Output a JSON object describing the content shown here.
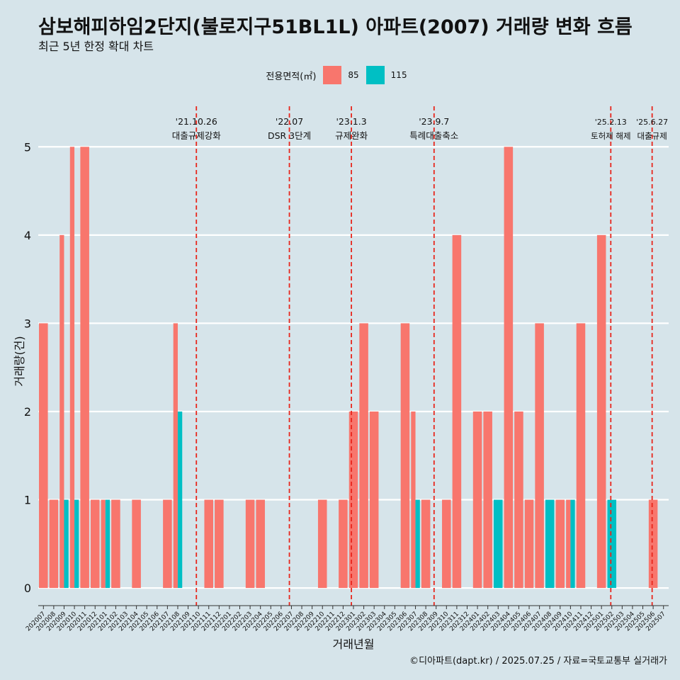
{
  "chart_data": {
    "type": "bar",
    "title": "삼보해피하임2단지(불로지구51BL1L) 아파트(2007) 거래량 변화 흐름",
    "subtitle": "최근 5년 한정 확대 차트",
    "xlabel": "거래년월",
    "ylabel": "거래량(건)",
    "ylim": [
      -0.2,
      5.5
    ],
    "yticks": [
      0,
      1,
      2,
      3,
      4,
      5
    ],
    "legend": {
      "title": "전용면적(㎡)",
      "position": "top"
    },
    "categories": [
      "202007",
      "202008",
      "202009",
      "202010",
      "202011",
      "202012",
      "202101",
      "202102",
      "202103",
      "202104",
      "202105",
      "202106",
      "202107",
      "202108",
      "202109",
      "202110",
      "202111",
      "202112",
      "202201",
      "202202",
      "202203",
      "202204",
      "202205",
      "202206",
      "202207",
      "202208",
      "202209",
      "202210",
      "202211",
      "202212",
      "202301",
      "202302",
      "202303",
      "202304",
      "202305",
      "202306",
      "202307",
      "202308",
      "202309",
      "202310",
      "202311",
      "202312",
      "202401",
      "202402",
      "202403",
      "202404",
      "202405",
      "202406",
      "202407",
      "202408",
      "202409",
      "202410",
      "202411",
      "202412",
      "202501",
      "202502",
      "202503",
      "202504",
      "202505",
      "202506",
      "202507"
    ],
    "series": [
      {
        "name": "85",
        "color": "#f8766d",
        "values": [
          3,
          1,
          4,
          5,
          5,
          1,
          1,
          1,
          0,
          1,
          0,
          0,
          1,
          3,
          0,
          0,
          1,
          1,
          0,
          0,
          1,
          1,
          0,
          0,
          0,
          0,
          0,
          1,
          0,
          1,
          2,
          3,
          2,
          0,
          0,
          3,
          2,
          1,
          0,
          1,
          4,
          0,
          2,
          2,
          0,
          5,
          2,
          1,
          3,
          0,
          1,
          1,
          3,
          0,
          4,
          0,
          0,
          0,
          0,
          1,
          0
        ]
      },
      {
        "name": "115",
        "color": "#00bfc4",
        "values": [
          0,
          0,
          1,
          1,
          0,
          0,
          1,
          0,
          0,
          0,
          0,
          0,
          0,
          2,
          0,
          0,
          0,
          0,
          0,
          0,
          0,
          0,
          0,
          0,
          0,
          0,
          0,
          0,
          0,
          0,
          0,
          0,
          0,
          0,
          0,
          0,
          1,
          0,
          0,
          0,
          0,
          0,
          0,
          0,
          1,
          0,
          0,
          0,
          0,
          1,
          0,
          1,
          0,
          0,
          0,
          1,
          0,
          0,
          0,
          0,
          0
        ]
      }
    ],
    "events": [
      {
        "date_line1": "'21.10.26",
        "date_line2": "대출규제강화",
        "month_index": 15.3
      },
      {
        "date_line1": "'22.07",
        "date_line2": "DSR 3단계",
        "month_index": 24.3
      },
      {
        "date_line1": "'23.1.3",
        "date_line2": "규제완화",
        "month_index": 30.3
      },
      {
        "date_line1": "'23.9.7",
        "date_line2": "특례대출축소",
        "month_index": 38.3
      },
      {
        "date_line1": "'25.2.13",
        "date_line2": "토허제 해제",
        "month_index": 55.4
      },
      {
        "date_line1": "'25.6.27",
        "date_line2": "대출규제",
        "month_index": 59.4
      }
    ]
  },
  "caption": "©디아파트(dapt.kr) / 2025.07.25 / 자료=국토교통부 실거래가"
}
